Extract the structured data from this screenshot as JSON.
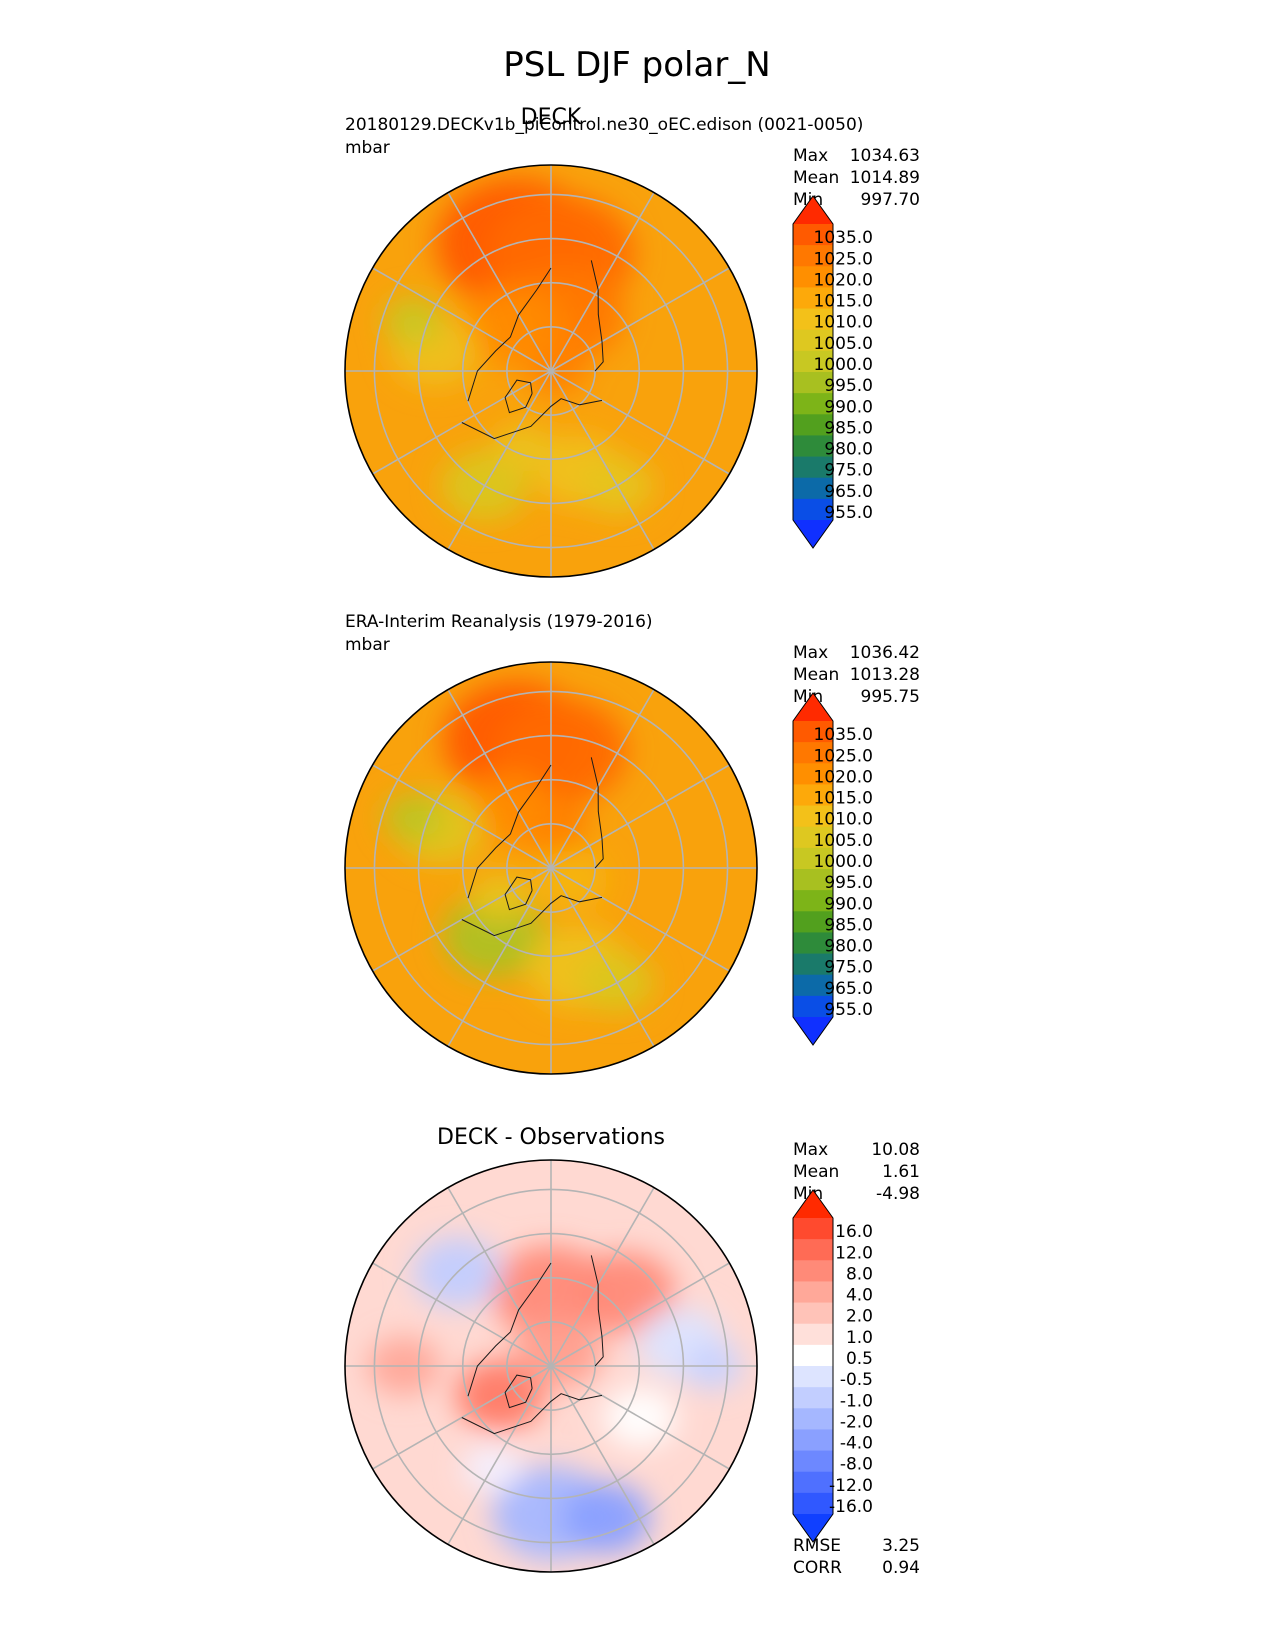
{
  "figure_title": "PSL DJF polar_N",
  "stat_labels": {
    "max": "Max",
    "mean": "Mean",
    "min": "Min"
  },
  "chart_data": [
    {
      "type": "heatmap",
      "projection": "north-polar-stereographic",
      "panel_title": "DECK",
      "left_title": "20180129.DECKv1b_piControl.ne30_oEC.edison (0021-0050)",
      "units": "mbar",
      "stats": {
        "max": "1034.63",
        "mean": "1014.89",
        "min": "997.70"
      },
      "colorbar": {
        "levels": [
          "1035.0",
          "1025.0",
          "1020.0",
          "1015.0",
          "1010.0",
          "1005.0",
          "1000.0",
          "995.0",
          "990.0",
          "985.0",
          "980.0",
          "975.0",
          "965.0",
          "955.0"
        ],
        "colors": [
          "#ff2a00",
          "#ff5a00",
          "#ff7800",
          "#ff8f00",
          "#fda90a",
          "#f3c119",
          "#dec820",
          "#c8c822",
          "#a8c020",
          "#7db418",
          "#52a01e",
          "#2e8b3a",
          "#1a7a6a",
          "#0c6aa8",
          "#0a4ee6",
          "#1030ff"
        ]
      },
      "field": {
        "base": "#f9a20c",
        "blobs": [
          {
            "lat": 45,
            "lon": 195,
            "value": 1027,
            "color": "#ff5a00",
            "size": 22
          },
          {
            "lat": 50,
            "lon": 175,
            "value": 1025,
            "color": "#ff6a00",
            "size": 20
          },
          {
            "lat": 70,
            "lon": 165,
            "value": 1022,
            "color": "#ff7800",
            "size": 16
          },
          {
            "lat": 80,
            "lon": 180,
            "value": 1021,
            "color": "#ff7b00",
            "size": 10
          },
          {
            "lat": 88,
            "lon": 90,
            "value": 1020,
            "color": "#ff7f00",
            "size": 8
          },
          {
            "lat": 70,
            "lon": 220,
            "value": 1018,
            "color": "#ff8a00",
            "size": 14
          },
          {
            "lat": 55,
            "lon": 15,
            "value": 1008,
            "color": "#f0c11a",
            "size": 12
          },
          {
            "lat": 45,
            "lon": 30,
            "value": 1006,
            "color": "#e6c41c",
            "size": 10
          },
          {
            "lat": 45,
            "lon": 330,
            "value": 1004,
            "color": "#dac620",
            "size": 12
          },
          {
            "lat": 50,
            "lon": 260,
            "value": 1008,
            "color": "#efc01a",
            "size": 12
          },
          {
            "lat": 40,
            "lon": 250,
            "value": 1002,
            "color": "#c8c822",
            "size": 8
          },
          {
            "lat": 62,
            "lon": 340,
            "value": 1007,
            "color": "#ebc31c",
            "size": 8
          }
        ]
      }
    },
    {
      "type": "heatmap",
      "projection": "north-polar-stereographic",
      "panel_title": "",
      "left_title": "ERA-Interim Reanalysis (1979-2016)",
      "units": "mbar",
      "stats": {
        "max": "1036.42",
        "mean": "1013.28",
        "min": "995.75"
      },
      "colorbar": {
        "levels": [
          "1035.0",
          "1025.0",
          "1020.0",
          "1015.0",
          "1010.0",
          "1005.0",
          "1000.0",
          "995.0",
          "990.0",
          "985.0",
          "980.0",
          "975.0",
          "965.0",
          "955.0"
        ],
        "colors": [
          "#ff2a00",
          "#ff5a00",
          "#ff7800",
          "#ff8f00",
          "#fda90a",
          "#f3c119",
          "#dec820",
          "#c8c822",
          "#a8c020",
          "#7db418",
          "#52a01e",
          "#2e8b3a",
          "#1a7a6a",
          "#0c6aa8",
          "#0a4ee6",
          "#1030ff"
        ]
      },
      "field": {
        "base": "#f9a20c",
        "blobs": [
          {
            "lat": 45,
            "lon": 195,
            "value": 1027,
            "color": "#ff5a00",
            "size": 20
          },
          {
            "lat": 50,
            "lon": 175,
            "value": 1024,
            "color": "#ff6a00",
            "size": 18
          },
          {
            "lat": 75,
            "lon": 180,
            "value": 1020,
            "color": "#ff7f00",
            "size": 10
          },
          {
            "lat": 65,
            "lon": 215,
            "value": 1018,
            "color": "#ff8a00",
            "size": 12
          },
          {
            "lat": 60,
            "lon": 320,
            "value": 1000,
            "color": "#aec122",
            "size": 14
          },
          {
            "lat": 55,
            "lon": 15,
            "value": 1007,
            "color": "#eec21a",
            "size": 14
          },
          {
            "lat": 45,
            "lon": 30,
            "value": 1004,
            "color": "#dac620",
            "size": 10
          },
          {
            "lat": 50,
            "lon": 250,
            "value": 1005,
            "color": "#e2c51e",
            "size": 12
          },
          {
            "lat": 40,
            "lon": 250,
            "value": 1001,
            "color": "#bdc522",
            "size": 8
          },
          {
            "lat": 82,
            "lon": 60,
            "value": 1010,
            "color": "#f5b512",
            "size": 10
          },
          {
            "lat": 70,
            "lon": 300,
            "value": 1007,
            "color": "#e8c41c",
            "size": 8
          }
        ]
      }
    },
    {
      "type": "heatmap",
      "projection": "north-polar-stereographic",
      "panel_title": "DECK - Observations",
      "left_title": "",
      "units": "",
      "stats": {
        "max": "10.08",
        "mean": "1.61",
        "min": "-4.98"
      },
      "extra_stats": [
        {
          "label": "RMSE",
          "value": "3.25"
        },
        {
          "label": "CORR",
          "value": "0.94"
        }
      ],
      "colorbar": {
        "levels": [
          "16.0",
          "12.0",
          "8.0",
          "4.0",
          "2.0",
          "1.0",
          "0.5",
          "-0.5",
          "-1.0",
          "-2.0",
          "-4.0",
          "-8.0",
          "-12.0",
          "-16.0"
        ],
        "colors": [
          "#ff2a00",
          "#ff4a2e",
          "#ff6b55",
          "#ff8a78",
          "#ffa899",
          "#ffc3b8",
          "#ffe0da",
          "#ffffff",
          "#dde4ff",
          "#c2ceff",
          "#a5b7ff",
          "#8aa0ff",
          "#6d88ff",
          "#4f70ff",
          "#3058ff",
          "#1040ff"
        ]
      },
      "field": {
        "base": "#ffd9d2",
        "blobs": [
          {
            "lat": 65,
            "lon": 180,
            "value": 4,
            "color": "#ff8a78",
            "size": 16
          },
          {
            "lat": 55,
            "lon": 135,
            "value": 4,
            "color": "#ff8a78",
            "size": 14
          },
          {
            "lat": 70,
            "lon": 300,
            "value": 5,
            "color": "#ff7a66",
            "size": 12
          },
          {
            "lat": 85,
            "lon": 150,
            "value": 3,
            "color": "#ff9f8e",
            "size": 12
          },
          {
            "lat": 40,
            "lon": 270,
            "value": 2,
            "color": "#ffa899",
            "size": 10
          },
          {
            "lat": 40,
            "lon": 0,
            "value": -3,
            "color": "#a5b7ff",
            "size": 16
          },
          {
            "lat": 35,
            "lon": 20,
            "value": -4,
            "color": "#8aa0ff",
            "size": 12
          },
          {
            "lat": 45,
            "lon": 225,
            "value": -2,
            "color": "#c2ceff",
            "size": 12
          },
          {
            "lat": 45,
            "lon": 100,
            "value": -1,
            "color": "#dde4ff",
            "size": 12
          },
          {
            "lat": 55,
            "lon": 60,
            "value": 0,
            "color": "#ffffff",
            "size": 10
          },
          {
            "lat": 35,
            "lon": 90,
            "value": -1,
            "color": "#c8d3ff",
            "size": 8
          },
          {
            "lat": 50,
            "lon": 330,
            "value": 0,
            "color": "#f4f0ff",
            "size": 8
          }
        ]
      }
    }
  ]
}
